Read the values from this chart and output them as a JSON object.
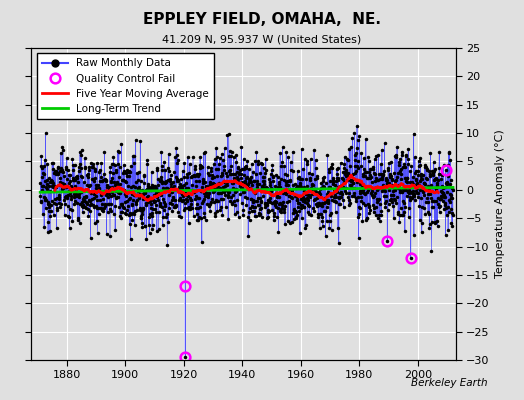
{
  "title": "EPPLEY FIELD, OMAHA,  NE.",
  "subtitle": "41.209 N, 95.937 W (United States)",
  "ylabel": "Temperature Anomaly (°C)",
  "xlim": [
    1868,
    2013
  ],
  "ylim": [
    -30,
    25
  ],
  "yticks": [
    -30,
    -25,
    -20,
    -15,
    -10,
    -5,
    0,
    5,
    10,
    15,
    20,
    25
  ],
  "xticks": [
    1880,
    1900,
    1920,
    1940,
    1960,
    1980,
    2000
  ],
  "background_color": "#e0e0e0",
  "grid_color": "#ffffff",
  "raw_line_color": "#4444ff",
  "raw_dot_color": "#000000",
  "qc_fail_color": "#ff00ff",
  "moving_avg_color": "#ff0000",
  "trend_color": "#00cc00",
  "watermark": "Berkeley Earth",
  "seed": 12345,
  "start_year": 1871,
  "end_year": 2012,
  "trend_slope": 0.006,
  "noise_std": 3.2,
  "qc_fail_years": [
    1920.5,
    1920.5,
    1989.5,
    1997.5,
    2009.5
  ],
  "qc_fail_values": [
    -17.0,
    -29.5,
    -9.0,
    -12.0,
    3.5
  ]
}
